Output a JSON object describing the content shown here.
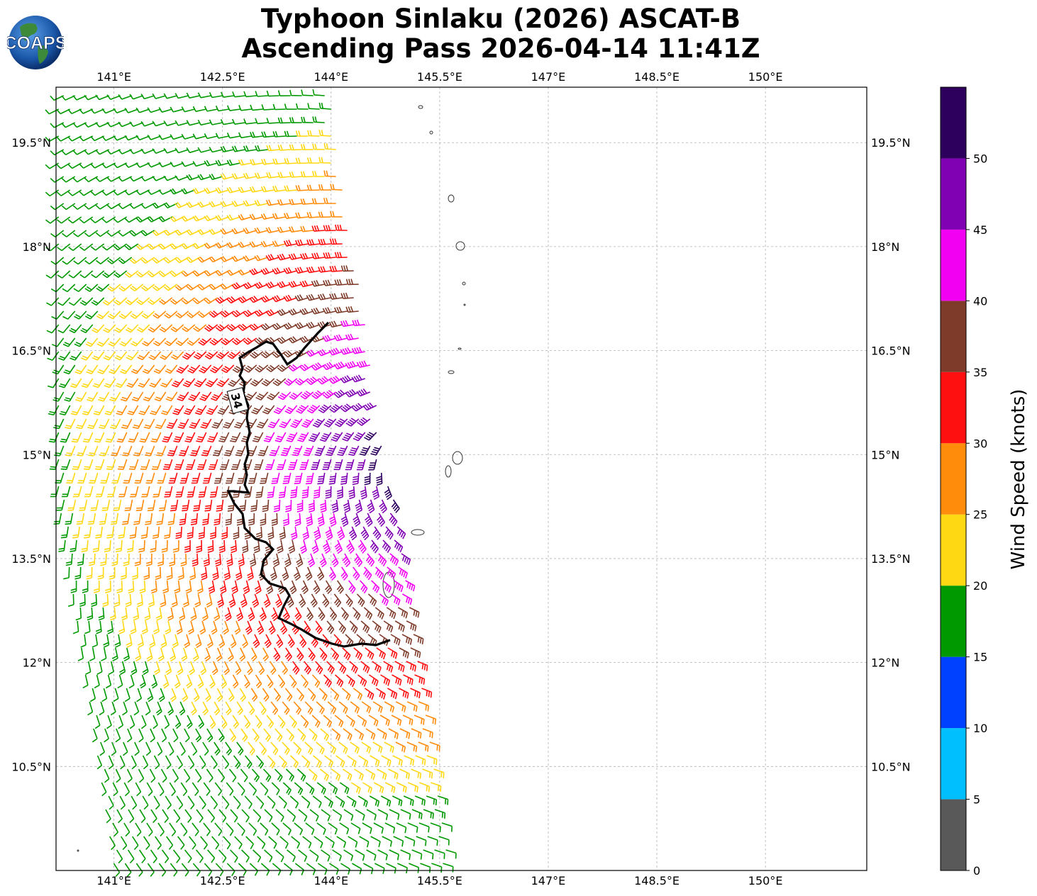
{
  "title_line1": "Typhoon Sinlaku (2026) ASCAT-B",
  "title_line2": "Ascending Pass 2026-04-14 11:41Z",
  "logo_text": "COAPS",
  "contour_label": "34",
  "colorbar": {
    "label": "Wind Speed (knots)",
    "ticks": [
      "0",
      "5",
      "10",
      "15",
      "20",
      "25",
      "30",
      "35",
      "40",
      "45",
      "50"
    ],
    "bands": [
      {
        "from": 0,
        "to": 5,
        "color": "#595959"
      },
      {
        "from": 5,
        "to": 10,
        "color": "#00bfff"
      },
      {
        "from": 10,
        "to": 15,
        "color": "#0040ff"
      },
      {
        "from": 15,
        "to": 20,
        "color": "#009900"
      },
      {
        "from": 20,
        "to": 25,
        "color": "#ffd814"
      },
      {
        "from": 25,
        "to": 30,
        "color": "#ff8c0a"
      },
      {
        "from": 30,
        "to": 35,
        "color": "#ff1010"
      },
      {
        "from": 35,
        "to": 40,
        "color": "#7f3b2a"
      },
      {
        "from": 40,
        "to": 45,
        "color": "#f200f2"
      },
      {
        "from": 45,
        "to": 50,
        "color": "#8000b3"
      },
      {
        "from": 50,
        "to": 55,
        "color": "#2e005e"
      }
    ]
  },
  "map": {
    "lon_range": [
      140.2,
      151.4
    ],
    "lat_range": [
      9.0,
      20.3
    ],
    "lon_ticks": [
      "141°E",
      "142.5°E",
      "144°E",
      "145.5°E",
      "147°E",
      "148.5°E",
      "150°E"
    ],
    "lon_values": [
      141,
      142.5,
      144,
      145.5,
      147,
      148.5,
      150
    ],
    "lat_ticks": [
      "19.5°N",
      "18°N",
      "16.5°N",
      "15°N",
      "13.5°N",
      "12°N",
      "10.5°N"
    ],
    "lat_values": [
      19.5,
      18,
      16.5,
      15,
      13.5,
      12,
      10.5
    ],
    "gridlines": true
  }
}
